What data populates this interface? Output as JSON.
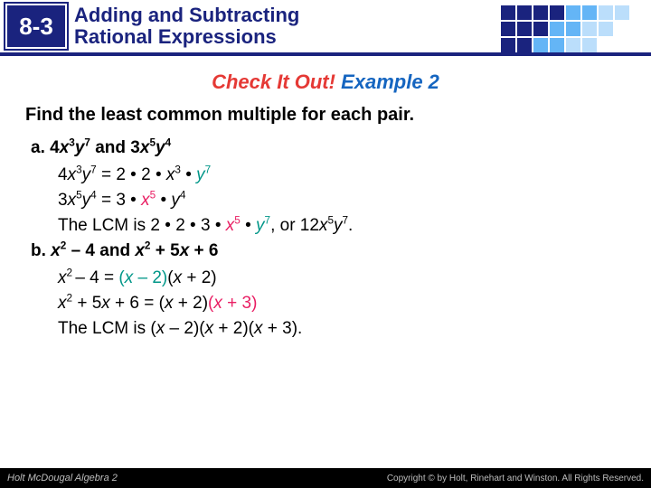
{
  "header": {
    "badge": "8-3",
    "title_line1": "Adding and Subtracting",
    "title_line2": "Rational Expressions",
    "grid_colors": [
      "#1a237e",
      "#1a237e",
      "#1a237e",
      "#1a237e",
      "#64b5f6",
      "#64b5f6",
      "#bbdefb",
      "#bbdefb",
      "#ffffff",
      "#1a237e",
      "#1a237e",
      "#1a237e",
      "#64b5f6",
      "#64b5f6",
      "#bbdefb",
      "#bbdefb",
      "#ffffff",
      "#ffffff",
      "#1a237e",
      "#1a237e",
      "#64b5f6",
      "#64b5f6",
      "#bbdefb",
      "#bbdefb",
      "#ffffff",
      "#ffffff",
      "#ffffff"
    ]
  },
  "check": {
    "red": "Check It Out!",
    "blue": " Example 2"
  },
  "prompt": "Find the least common multiple for each pair.",
  "a": {
    "label": "a. ",
    "given_html": "4<span class='it'>x</span><sup>3</sup><span class='it'>y</span><sup>7</sup> and 3<span class='it'>x</span><sup>5</sup><span class='it'>y</span><sup>4</sup>",
    "f1_html": "4<span class='it'>x</span><sup>3</sup><span class='it'>y</span><sup>7</sup> = 2 <span class='dot'>•</span> 2 <span class='dot'>•</span> <span class='it'>x</span><sup>3</sup> <span class='dot'>•</span> <span class='hl-teal'><span class='it'>y</span><sup>7</sup></span>",
    "f2_html": "3<span class='it'>x</span><sup>5</sup><span class='it'>y</span><sup>4</sup> = 3 <span class='dot'>•</span> <span class='hl-pink'><span class='it'>x</span><sup>5</sup></span> <span class='dot'>•</span> <span class='it'>y</span><sup>4</sup>",
    "lcm_html": "The LCM is 2 <span class='dot'>•</span> 2 <span class='dot'>•</span> 3 <span class='dot'>•</span> <span class='hl-pink'><span class='it'>x</span><sup>5</sup></span> <span class='dot'>•</span> <span class='hl-teal'><span class='it'>y</span><sup>7</sup></span>, or 12<span class='it'>x</span><sup>5</sup><span class='it'>y</span><sup>7</sup>."
  },
  "b": {
    "label": "b. ",
    "given_html": "<span class='it'>x</span><sup>2</sup> – 4 and <span class='it'>x</span><sup>2</sup> + 5<span class='it'>x</span> + 6",
    "f1_html": "<span class='it'>x</span><sup>2 </sup>– 4 = <span class='hl-teal'>(<span class='it'>x</span> – 2)</span>(<span class='it'>x</span> + 2)",
    "f2_html": "<span class='it'>x</span><sup>2</sup> + 5<span class='it'>x</span> + 6 = (<span class='it'>x</span> + 2)<span class='hl-pink'>(<span class='it'>x</span> + 3)</span>",
    "lcm_html": "The LCM is (<span class='it'>x</span> – 2)(<span class='it'>x</span> + 2)(<span class='it'>x</span> + 3)."
  },
  "footer": {
    "left": "Holt McDougal Algebra 2",
    "right": "Copyright © by Holt, Rinehart and Winston. All Rights Reserved."
  }
}
